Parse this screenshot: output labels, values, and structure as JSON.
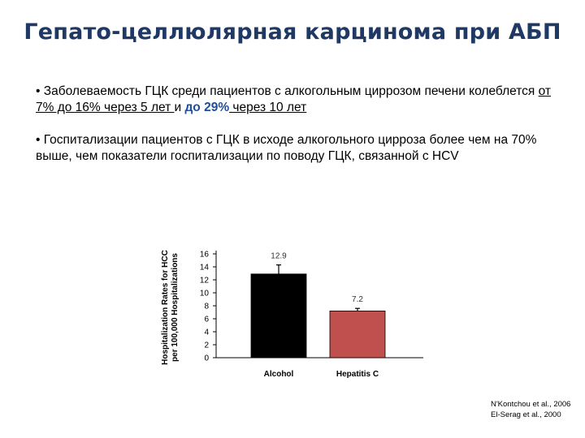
{
  "slide": {
    "title": "Гепато-целлюлярная карцинома при АБП",
    "bullet1": {
      "marker": "•",
      "part1": "Заболеваемость ГЦК среди пациентов с алкогольным циррозом печени колеблется ",
      "part2": "от 7% до 16% через 5 лет ",
      "part3": "и ",
      "part4": "до 29%",
      "part5": " через 10 лет"
    },
    "bullet2": {
      "marker": "•",
      "text": "Госпитализации пациентов с ГЦК в исходе алкогольного цирроза более чем на 70% выше, чем показатели госпитализации по поводу ГЦК, связанной с HCV"
    },
    "references": [
      "N'Kontchou et al., 2006",
      "El-Serag et al., 2000"
    ]
  },
  "chart_data": {
    "type": "bar",
    "categories": [
      "Alcohol",
      "Hepatitis C"
    ],
    "values": [
      12.9,
      7.2
    ],
    "errors": [
      1.4,
      0.4
    ],
    "data_labels": [
      "12.9",
      "7.2"
    ],
    "ylabel_line1": "Hospitalization Rates for HCC",
    "ylabel_line2": "per 100,000 Hospitalizations",
    "ylim": [
      0,
      16
    ],
    "yticks": [
      0,
      2,
      4,
      6,
      8,
      10,
      12,
      14,
      16
    ],
    "colors": [
      "#000000",
      "#c0504d"
    ],
    "grid": false
  }
}
